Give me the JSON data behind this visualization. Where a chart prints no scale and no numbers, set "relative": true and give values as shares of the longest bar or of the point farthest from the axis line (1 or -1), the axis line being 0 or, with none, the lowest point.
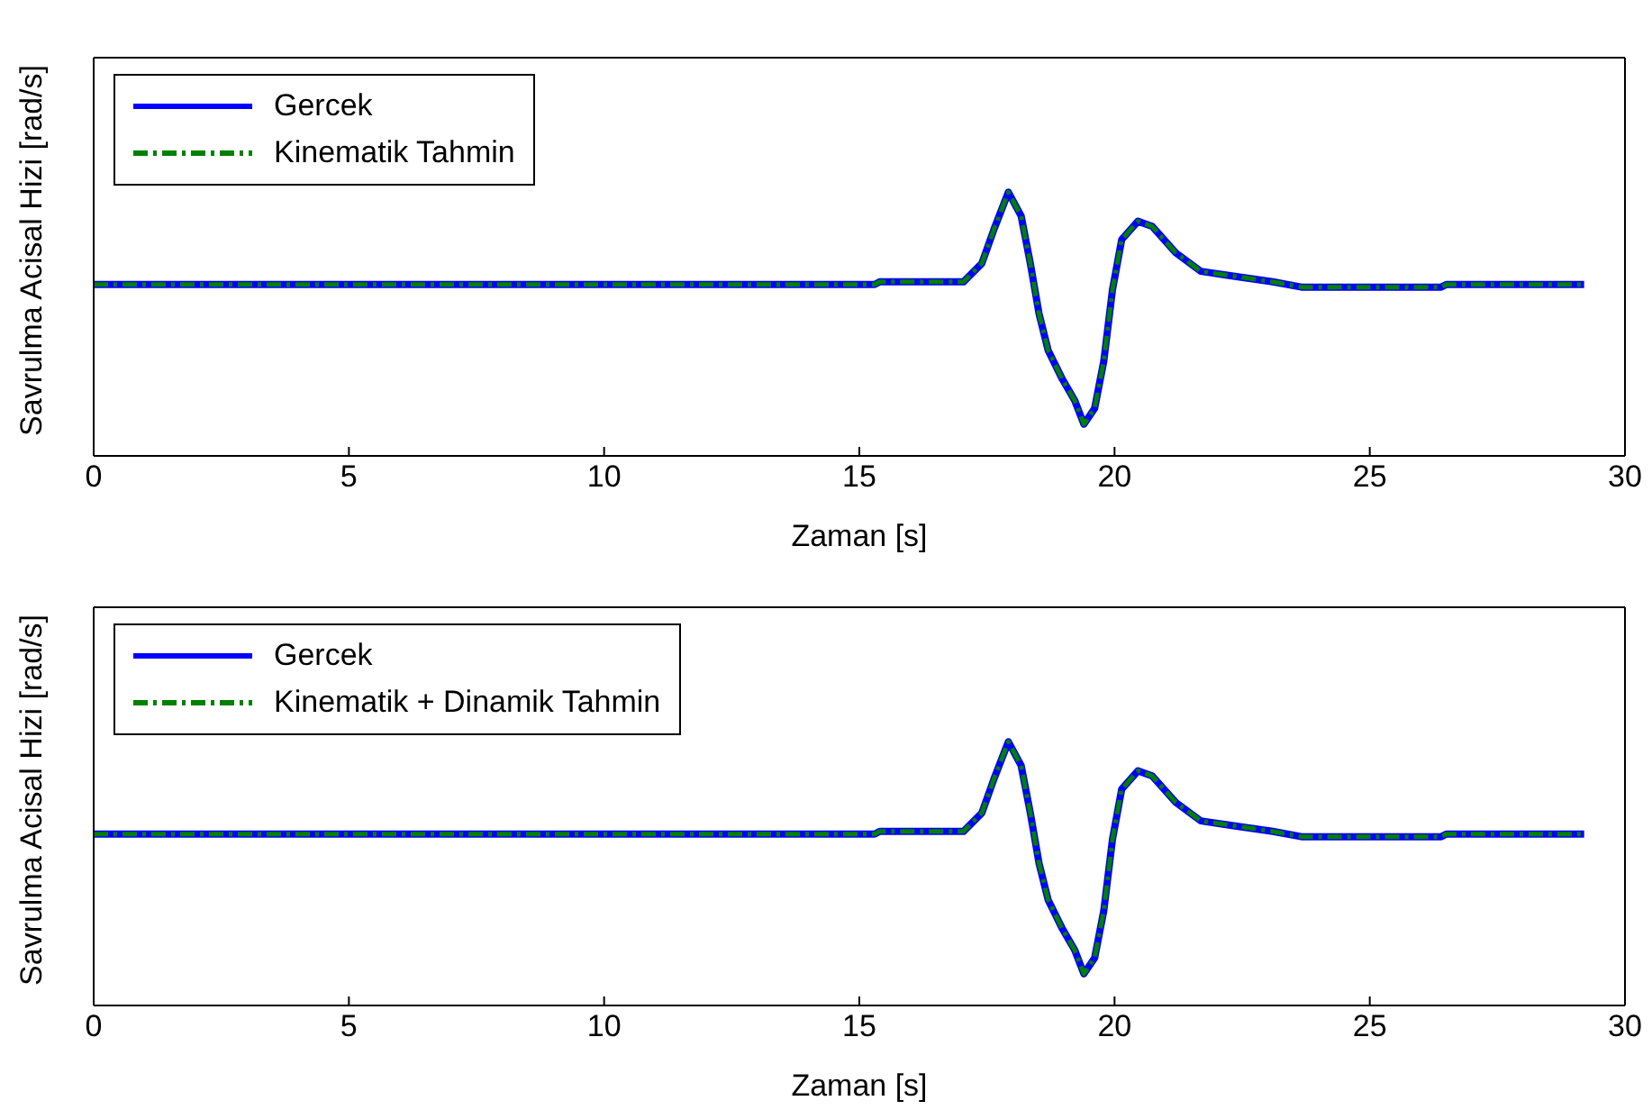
{
  "chart_data": [
    {
      "type": "line",
      "relative": true,
      "xlabel": "Zaman [s]",
      "ylabel": "Savrulma Acisal Hizi [rad/s]",
      "xlim": [
        0,
        30
      ],
      "xticks": [
        0,
        5,
        10,
        15,
        20,
        25,
        30
      ],
      "legend": "top left",
      "x": [
        0,
        15.3,
        15.4,
        17.04,
        17.4,
        17.64,
        17.92,
        18.17,
        18.35,
        18.52,
        18.7,
        18.98,
        19.22,
        19.4,
        19.61,
        19.79,
        19.96,
        20.14,
        20.46,
        20.74,
        21.2,
        21.69,
        22.39,
        23.1,
        23.66,
        26.4,
        26.5,
        29.2
      ],
      "series": [
        {
          "name": "Gercek",
          "color": "#0000ff",
          "line_style": "solid",
          "values": [
            0.65,
            0.65,
            0.66,
            0.66,
            0.73,
            0.86,
            1.0,
            0.91,
            0.73,
            0.54,
            0.4,
            0.29,
            0.21,
            0.12,
            0.18,
            0.36,
            0.63,
            0.82,
            0.89,
            0.87,
            0.77,
            0.7,
            0.68,
            0.66,
            0.64,
            0.64,
            0.65,
            0.65
          ]
        },
        {
          "name": "Kinematik Tahmin",
          "color": "#008000",
          "line_style": "dashed",
          "values": [
            0.65,
            0.65,
            0.66,
            0.66,
            0.73,
            0.86,
            1.0,
            0.91,
            0.73,
            0.54,
            0.4,
            0.29,
            0.21,
            0.12,
            0.18,
            0.36,
            0.63,
            0.82,
            0.89,
            0.87,
            0.77,
            0.7,
            0.68,
            0.66,
            0.64,
            0.64,
            0.65,
            0.65
          ]
        }
      ]
    },
    {
      "type": "line",
      "relative": true,
      "xlabel": "Zaman [s]",
      "ylabel": "Savrulma Acisal Hizi [rad/s]",
      "xlim": [
        0,
        30
      ],
      "xticks": [
        0,
        5,
        10,
        15,
        20,
        25,
        30
      ],
      "legend": "top left",
      "x": [
        0,
        15.3,
        15.4,
        17.04,
        17.4,
        17.64,
        17.92,
        18.17,
        18.35,
        18.52,
        18.7,
        18.98,
        19.22,
        19.4,
        19.61,
        19.79,
        19.96,
        20.14,
        20.46,
        20.74,
        21.2,
        21.69,
        22.39,
        23.1,
        23.66,
        26.4,
        26.5,
        29.2
      ],
      "series": [
        {
          "name": "Gercek",
          "color": "#0000ff",
          "line_style": "solid",
          "values": [
            0.65,
            0.65,
            0.66,
            0.66,
            0.73,
            0.86,
            1.0,
            0.91,
            0.73,
            0.54,
            0.4,
            0.29,
            0.21,
            0.12,
            0.18,
            0.36,
            0.63,
            0.82,
            0.89,
            0.87,
            0.77,
            0.7,
            0.68,
            0.66,
            0.64,
            0.64,
            0.65,
            0.65
          ]
        },
        {
          "name": "Kinematik + Dinamik Tahmin",
          "color": "#008000",
          "line_style": "dashed",
          "values": [
            0.65,
            0.65,
            0.66,
            0.66,
            0.73,
            0.86,
            1.0,
            0.91,
            0.73,
            0.54,
            0.4,
            0.29,
            0.21,
            0.12,
            0.18,
            0.36,
            0.63,
            0.82,
            0.89,
            0.87,
            0.77,
            0.7,
            0.68,
            0.66,
            0.64,
            0.64,
            0.65,
            0.65
          ]
        }
      ]
    }
  ]
}
